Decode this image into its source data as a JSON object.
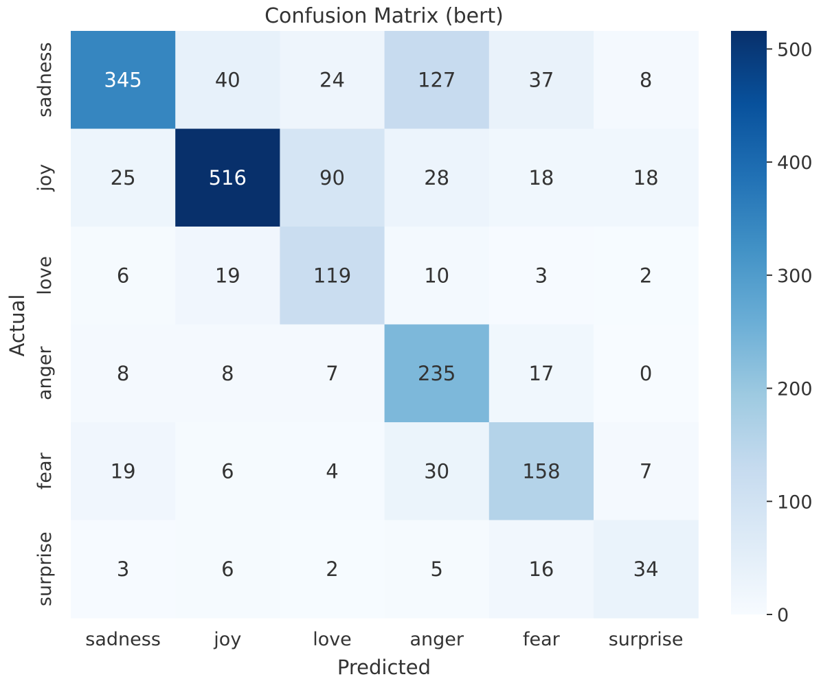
{
  "chart_data": {
    "type": "heatmap",
    "title": "Confusion Matrix (bert)",
    "xlabel": "Predicted",
    "ylabel": "Actual",
    "x_categories": [
      "sadness",
      "joy",
      "love",
      "anger",
      "fear",
      "surprise"
    ],
    "y_categories": [
      "sadness",
      "joy",
      "love",
      "anger",
      "fear",
      "surprise"
    ],
    "values": [
      [
        345,
        40,
        24,
        127,
        37,
        8
      ],
      [
        25,
        516,
        90,
        28,
        18,
        18
      ],
      [
        6,
        19,
        119,
        10,
        3,
        2
      ],
      [
        8,
        8,
        7,
        235,
        17,
        0
      ],
      [
        19,
        6,
        4,
        30,
        158,
        7
      ],
      [
        3,
        6,
        2,
        5,
        16,
        34
      ]
    ],
    "colorbar": {
      "min": 0,
      "max": 516,
      "ticks": [
        0,
        100,
        200,
        300,
        400,
        500
      ],
      "colormap": "Blues",
      "stops": [
        "#f7fbff",
        "#deebf7",
        "#c6dbef",
        "#9ecae1",
        "#6baed6",
        "#4292c6",
        "#2171b5",
        "#08519c",
        "#08306b"
      ]
    },
    "text_colors": {
      "dark": "#333333",
      "light": "#ffffff"
    }
  }
}
